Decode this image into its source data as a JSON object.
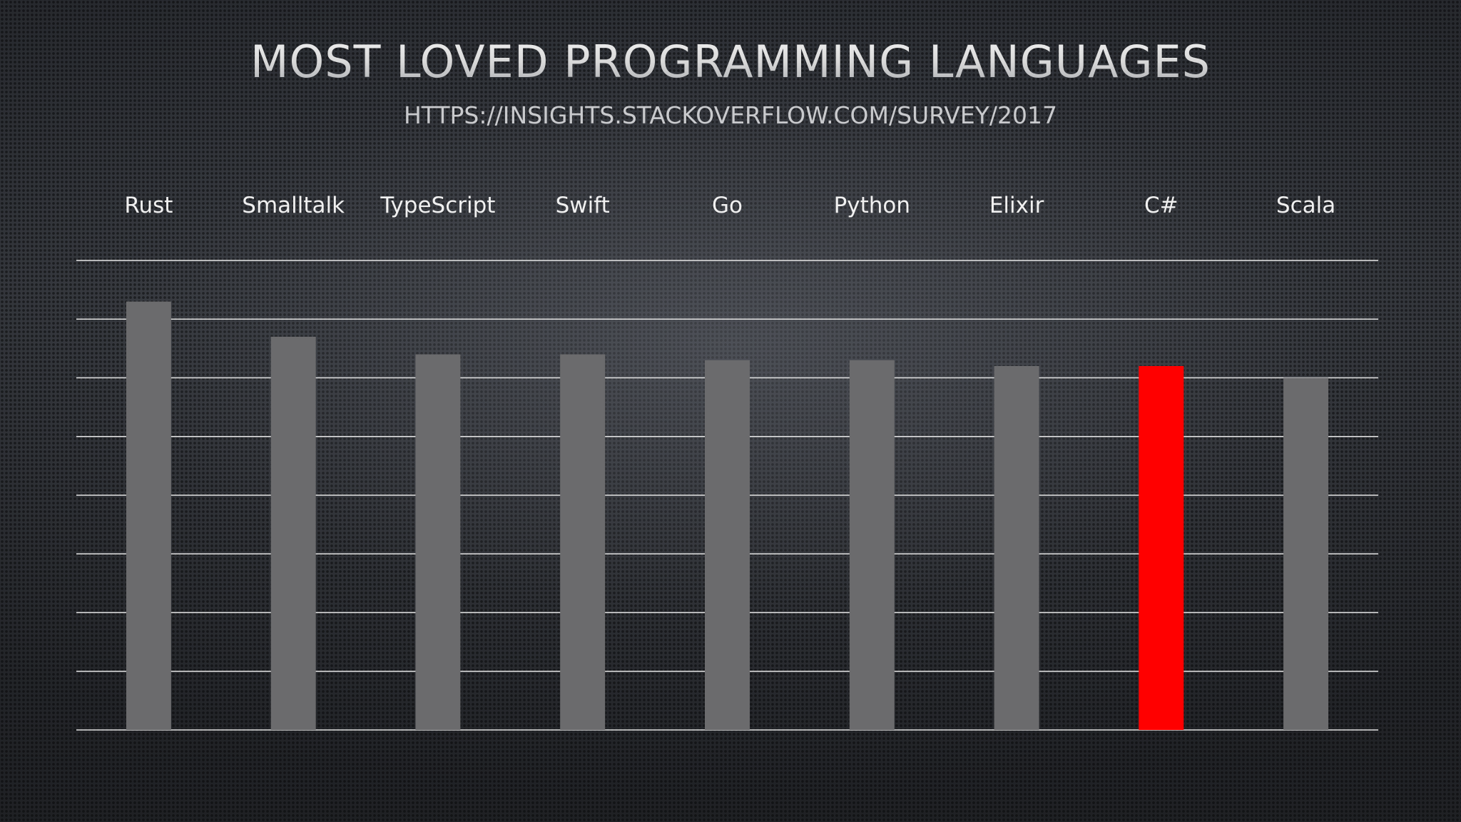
{
  "slide": {
    "title": "MOST LOVED PROGRAMMING LANGUAGES",
    "subtitle": "HTTPS://INSIGHTS.STACKOVERFLOW.COM/SURVEY/2017"
  },
  "chart_data": {
    "type": "bar",
    "title": "MOST LOVED PROGRAMMING LANGUAGES",
    "subtitle": "HTTPS://INSIGHTS.STACKOVERFLOW.COM/SURVEY/2017",
    "categories": [
      "Rust",
      "Smalltalk",
      "TypeScript",
      "Swift",
      "Go",
      "Python",
      "Elixir",
      "C#",
      "Scala"
    ],
    "values": [
      73,
      67,
      64,
      64,
      63,
      63,
      62,
      62,
      60
    ],
    "ylim": [
      0,
      80
    ],
    "grid": true,
    "gridlines": [
      0,
      10,
      20,
      30,
      40,
      50,
      60,
      70,
      80
    ],
    "category_labels_position": "top",
    "bar_color": "#6b6b6d",
    "highlight_color": "#ff0000",
    "highlighted": "C#",
    "gridline_color": "#e6e6e6",
    "label_color": "#f0f0f0"
  }
}
